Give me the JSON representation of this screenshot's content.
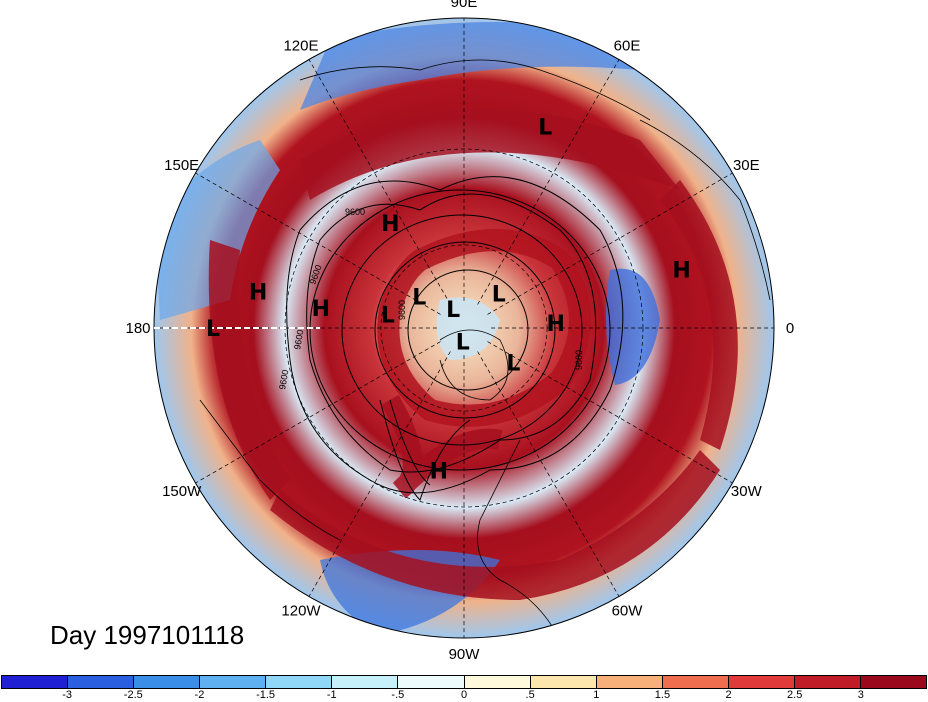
{
  "map": {
    "projection": "north-polar-stereographic",
    "longitude_labels": [
      "90E",
      "60E",
      "30E",
      "0",
      "30W",
      "60W",
      "90W",
      "120W",
      "150W",
      "180",
      "150E",
      "120E"
    ],
    "systems": [
      {
        "type": "L",
        "lon": 68,
        "lat": 20
      },
      {
        "type": "H",
        "lon": 125,
        "lat": 45
      },
      {
        "type": "H",
        "lon": 15,
        "lat": 18
      },
      {
        "type": "H",
        "lon": 170,
        "lat": 22
      },
      {
        "type": "L",
        "lon": 180,
        "lat": 12
      },
      {
        "type": "H",
        "lon": 172,
        "lat": 40
      },
      {
        "type": "L",
        "lon": 145,
        "lat": 70
      },
      {
        "type": "L",
        "lon": 120,
        "lat": 82
      },
      {
        "type": "L",
        "lon": 45,
        "lat": 72
      },
      {
        "type": "L",
        "lon": 170,
        "lat": 62
      },
      {
        "type": "H",
        "lon": 3,
        "lat": 57
      },
      {
        "type": "L",
        "lon": -95,
        "lat": 85
      },
      {
        "type": "L",
        "lon": -35,
        "lat": 68
      },
      {
        "type": "H",
        "lon": -100,
        "lat": 40
      }
    ],
    "contour_labels": [
      "9600",
      "9600",
      "9600",
      "9600",
      "9600",
      "9600"
    ],
    "colors": {
      "strong_positive": "#a50f1e",
      "strong_negative": "#1f33d1",
      "land_outline": "#000000"
    }
  },
  "title": {
    "text": "Day 1997101118"
  },
  "colorbar": {
    "colors": [
      "#1f1fd4",
      "#2a5fe0",
      "#3a8ee8",
      "#5fb0f0",
      "#8fd6f7",
      "#c6f0fa",
      "#eefbfd",
      "#fff9dc",
      "#fde6ad",
      "#f7b07a",
      "#ef6e50",
      "#e03a3a",
      "#c01c28",
      "#9a0a1c"
    ],
    "ticks": [
      "-3",
      "-2.5",
      "-2",
      "-1.5",
      "-1",
      "-.5",
      "0",
      ".5",
      "1",
      "1.5",
      "2",
      "2.5",
      "3"
    ]
  }
}
